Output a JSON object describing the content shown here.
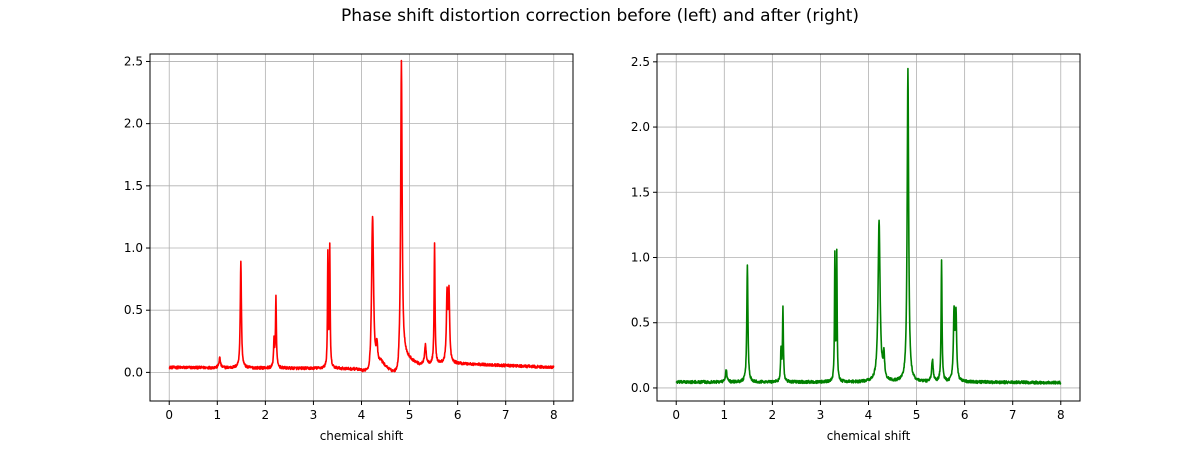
{
  "figure": {
    "title": "Phase shift distortion correction before (left) and after (right)"
  },
  "chart_data": [
    {
      "type": "line",
      "xlabel": "chemical shift",
      "ylabel": "",
      "xlim": [
        -0.4,
        8.4
      ],
      "ylim": [
        -0.23,
        2.56
      ],
      "grid": true,
      "xticks": [
        0,
        1,
        2,
        3,
        4,
        5,
        6,
        7,
        8
      ],
      "yticks": [
        0.0,
        0.5,
        1.0,
        1.5,
        2.0,
        2.5
      ],
      "series": [
        {
          "color": "#ff0000",
          "baseline": [
            [
              0,
              0.04
            ],
            [
              3.5,
              0.03
            ],
            [
              3.9,
              0.02
            ],
            [
              4.1,
              -0.02
            ],
            [
              4.19,
              -0.09
            ],
            [
              4.4,
              0.07
            ],
            [
              4.6,
              0.0
            ],
            [
              4.76,
              -0.05
            ],
            [
              4.9,
              0.12
            ],
            [
              5.2,
              0.06
            ],
            [
              6.0,
              0.07
            ],
            [
              8.0,
              0.04
            ]
          ],
          "peaks": [
            {
              "x": 1.05,
              "h": 0.08,
              "w": 0.018
            },
            {
              "x": 1.49,
              "h": 0.86,
              "w": 0.014
            },
            {
              "x": 2.18,
              "h": 0.22,
              "w": 0.011
            },
            {
              "x": 2.22,
              "h": 0.56,
              "w": 0.011
            },
            {
              "x": 3.3,
              "h": 0.91,
              "w": 0.009
            },
            {
              "x": 3.34,
              "h": 0.96,
              "w": 0.009
            },
            {
              "x": 4.23,
              "h": 1.31,
              "w": 0.025
            },
            {
              "x": 4.32,
              "h": 0.17,
              "w": 0.018
            },
            {
              "x": 4.83,
              "h": 2.46,
              "w": 0.018
            },
            {
              "x": 5.33,
              "h": 0.16,
              "w": 0.018
            },
            {
              "x": 5.52,
              "h": 0.97,
              "w": 0.011
            },
            {
              "x": 5.78,
              "h": 0.55,
              "w": 0.016
            },
            {
              "x": 5.82,
              "h": 0.55,
              "w": 0.016
            }
          ]
        }
      ]
    },
    {
      "type": "line",
      "xlabel": "chemical shift",
      "ylabel": "",
      "xlim": [
        -0.4,
        8.4
      ],
      "ylim": [
        -0.1,
        2.56
      ],
      "grid": true,
      "xticks": [
        0,
        1,
        2,
        3,
        4,
        5,
        6,
        7,
        8
      ],
      "yticks": [
        0.0,
        0.5,
        1.0,
        1.5,
        2.0,
        2.5
      ],
      "series": [
        {
          "color": "#008000",
          "baseline": [
            [
              0,
              0.045
            ],
            [
              4.0,
              0.045
            ],
            [
              6.0,
              0.045
            ],
            [
              8.0,
              0.04
            ]
          ],
          "peaks": [
            {
              "x": 1.04,
              "h": 0.09,
              "w": 0.018
            },
            {
              "x": 1.48,
              "h": 0.9,
              "w": 0.014
            },
            {
              "x": 2.18,
              "h": 0.24,
              "w": 0.011
            },
            {
              "x": 2.22,
              "h": 0.56,
              "w": 0.011
            },
            {
              "x": 3.3,
              "h": 0.96,
              "w": 0.009
            },
            {
              "x": 3.34,
              "h": 0.96,
              "w": 0.009
            },
            {
              "x": 4.22,
              "h": 1.23,
              "w": 0.025
            },
            {
              "x": 4.32,
              "h": 0.18,
              "w": 0.018
            },
            {
              "x": 4.82,
              "h": 2.4,
              "w": 0.018
            },
            {
              "x": 5.33,
              "h": 0.17,
              "w": 0.018
            },
            {
              "x": 5.52,
              "h": 0.94,
              "w": 0.011
            },
            {
              "x": 5.78,
              "h": 0.52,
              "w": 0.016
            },
            {
              "x": 5.82,
              "h": 0.5,
              "w": 0.016
            }
          ]
        }
      ]
    }
  ]
}
